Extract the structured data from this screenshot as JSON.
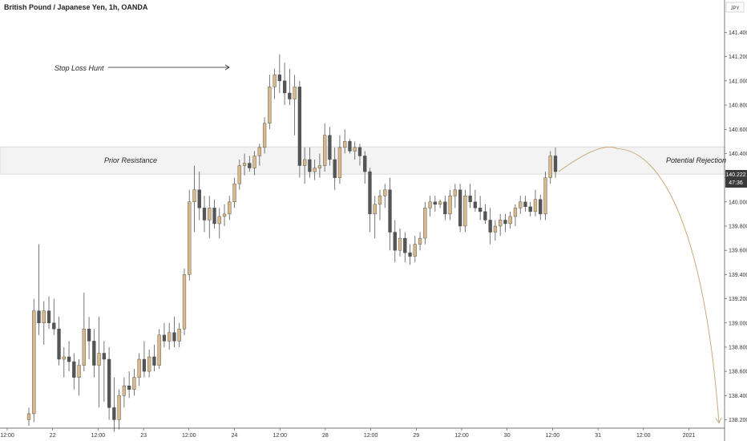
{
  "header": {
    "symbol_title": "British Pound / Japanese Yen, 1h, OANDA",
    "currency_label": "JPY"
  },
  "price_badge": {
    "price": "140.222",
    "countdown": "47:36"
  },
  "annotations": {
    "stop_loss": "Stop Loss Hunt",
    "prior_resistance": "Prior Resistance",
    "potential_rejection": "Potential Rejection"
  },
  "colors": {
    "bull": "#d9b98a",
    "bear": "#555555",
    "wick": "#555555",
    "zone": "#e5e5e5",
    "projection": "#c8ab7a",
    "badge": "#3a3a3a"
  },
  "chart_data": {
    "type": "candlestick",
    "title": "British Pound / Japanese Yen, 1h, OANDA",
    "y_axis": {
      "ylim": [
        138.12,
        141.5
      ],
      "position": "right",
      "ticks": [
        "141.400",
        "141.200",
        "141.000",
        "140.800",
        "140.600",
        "140.400",
        "140.200",
        "140.000",
        "139.800",
        "139.600",
        "139.400",
        "139.200",
        "139.000",
        "138.800",
        "138.600",
        "138.400",
        "138.200"
      ]
    },
    "x_axis": {
      "ticks": [
        "12:00",
        "22",
        "12:00",
        "23",
        "12:00",
        "24",
        "12:00",
        "28",
        "12:00",
        "29",
        "12:00",
        "30",
        "12:00",
        "31",
        "12:00",
        "2021"
      ]
    },
    "resistance_zone": {
      "low": 140.23,
      "high": 140.455,
      "label": "Prior Resistance"
    },
    "candles": [
      {
        "o": 138.2,
        "h": 138.3,
        "l": 138.15,
        "c": 138.25
      },
      {
        "o": 138.25,
        "h": 139.2,
        "l": 138.18,
        "c": 139.1
      },
      {
        "o": 139.1,
        "h": 139.65,
        "l": 138.9,
        "c": 139.0
      },
      {
        "o": 139.0,
        "h": 139.18,
        "l": 138.82,
        "c": 139.1
      },
      {
        "o": 139.1,
        "h": 139.22,
        "l": 138.95,
        "c": 139.0
      },
      {
        "o": 139.0,
        "h": 139.2,
        "l": 138.9,
        "c": 138.95
      },
      {
        "o": 138.95,
        "h": 139.05,
        "l": 138.65,
        "c": 138.7
      },
      {
        "o": 138.7,
        "h": 138.8,
        "l": 138.55,
        "c": 138.72
      },
      {
        "o": 138.72,
        "h": 138.85,
        "l": 138.6,
        "c": 138.68
      },
      {
        "o": 138.68,
        "h": 138.75,
        "l": 138.45,
        "c": 138.55
      },
      {
        "o": 138.55,
        "h": 138.7,
        "l": 138.4,
        "c": 138.65
      },
      {
        "o": 138.65,
        "h": 139.25,
        "l": 138.6,
        "c": 138.95
      },
      {
        "o": 138.95,
        "h": 139.05,
        "l": 138.7,
        "c": 138.85
      },
      {
        "o": 138.85,
        "h": 138.95,
        "l": 138.55,
        "c": 138.65
      },
      {
        "o": 138.65,
        "h": 139.05,
        "l": 138.3,
        "c": 138.75
      },
      {
        "o": 138.75,
        "h": 138.85,
        "l": 138.35,
        "c": 138.7
      },
      {
        "o": 138.7,
        "h": 138.8,
        "l": 138.2,
        "c": 138.3
      },
      {
        "o": 138.3,
        "h": 138.55,
        "l": 138.1,
        "c": 138.2
      },
      {
        "o": 138.2,
        "h": 138.45,
        "l": 138.12,
        "c": 138.4
      },
      {
        "o": 138.4,
        "h": 138.55,
        "l": 138.3,
        "c": 138.48
      },
      {
        "o": 138.48,
        "h": 138.6,
        "l": 138.38,
        "c": 138.45
      },
      {
        "o": 138.45,
        "h": 138.62,
        "l": 138.4,
        "c": 138.55
      },
      {
        "o": 138.55,
        "h": 138.75,
        "l": 138.48,
        "c": 138.7
      },
      {
        "o": 138.7,
        "h": 138.85,
        "l": 138.55,
        "c": 138.6
      },
      {
        "o": 138.6,
        "h": 138.78,
        "l": 138.55,
        "c": 138.72
      },
      {
        "o": 138.72,
        "h": 138.82,
        "l": 138.6,
        "c": 138.65
      },
      {
        "o": 138.65,
        "h": 138.95,
        "l": 138.62,
        "c": 138.9
      },
      {
        "o": 138.9,
        "h": 139.0,
        "l": 138.8,
        "c": 138.85
      },
      {
        "o": 138.85,
        "h": 139.0,
        "l": 138.78,
        "c": 138.92
      },
      {
        "o": 138.92,
        "h": 139.05,
        "l": 138.8,
        "c": 138.85
      },
      {
        "o": 138.85,
        "h": 139.0,
        "l": 138.8,
        "c": 138.95
      },
      {
        "o": 138.95,
        "h": 139.45,
        "l": 138.9,
        "c": 139.4
      },
      {
        "o": 139.4,
        "h": 140.1,
        "l": 139.35,
        "c": 140.0
      },
      {
        "o": 140.0,
        "h": 140.3,
        "l": 139.75,
        "c": 140.1
      },
      {
        "o": 140.1,
        "h": 140.25,
        "l": 139.85,
        "c": 139.95
      },
      {
        "o": 139.95,
        "h": 140.05,
        "l": 139.75,
        "c": 139.85
      },
      {
        "o": 139.85,
        "h": 140.05,
        "l": 139.7,
        "c": 139.95
      },
      {
        "o": 139.95,
        "h": 140.02,
        "l": 139.78,
        "c": 139.82
      },
      {
        "o": 139.82,
        "h": 139.95,
        "l": 139.7,
        "c": 139.88
      },
      {
        "o": 139.88,
        "h": 139.98,
        "l": 139.8,
        "c": 139.9
      },
      {
        "o": 139.9,
        "h": 140.05,
        "l": 139.85,
        "c": 140.0
      },
      {
        "o": 140.0,
        "h": 140.2,
        "l": 139.95,
        "c": 140.15
      },
      {
        "o": 140.15,
        "h": 140.35,
        "l": 140.1,
        "c": 140.3
      },
      {
        "o": 140.3,
        "h": 140.4,
        "l": 140.22,
        "c": 140.32
      },
      {
        "o": 140.32,
        "h": 140.38,
        "l": 140.25,
        "c": 140.28
      },
      {
        "o": 140.28,
        "h": 140.42,
        "l": 140.22,
        "c": 140.38
      },
      {
        "o": 140.38,
        "h": 140.48,
        "l": 140.3,
        "c": 140.45
      },
      {
        "o": 140.45,
        "h": 140.7,
        "l": 140.4,
        "c": 140.65
      },
      {
        "o": 140.65,
        "h": 141.05,
        "l": 140.6,
        "c": 140.95
      },
      {
        "o": 140.95,
        "h": 141.1,
        "l": 140.85,
        "c": 141.05
      },
      {
        "o": 141.05,
        "h": 141.22,
        "l": 140.9,
        "c": 141.0
      },
      {
        "o": 141.0,
        "h": 141.15,
        "l": 140.8,
        "c": 140.9
      },
      {
        "o": 140.9,
        "h": 141.1,
        "l": 140.8,
        "c": 140.85
      },
      {
        "o": 140.85,
        "h": 141.05,
        "l": 140.55,
        "c": 140.95
      },
      {
        "o": 140.95,
        "h": 141.0,
        "l": 140.2,
        "c": 140.3
      },
      {
        "o": 140.3,
        "h": 140.45,
        "l": 140.15,
        "c": 140.35
      },
      {
        "o": 140.35,
        "h": 140.45,
        "l": 140.2,
        "c": 140.25
      },
      {
        "o": 140.25,
        "h": 140.35,
        "l": 140.18,
        "c": 140.28
      },
      {
        "o": 140.28,
        "h": 140.4,
        "l": 140.2,
        "c": 140.3
      },
      {
        "o": 140.3,
        "h": 140.65,
        "l": 140.25,
        "c": 140.55
      },
      {
        "o": 140.55,
        "h": 140.62,
        "l": 140.3,
        "c": 140.35
      },
      {
        "o": 140.35,
        "h": 140.45,
        "l": 140.1,
        "c": 140.2
      },
      {
        "o": 140.2,
        "h": 140.55,
        "l": 140.15,
        "c": 140.45
      },
      {
        "o": 140.45,
        "h": 140.6,
        "l": 140.4,
        "c": 140.5
      },
      {
        "o": 140.5,
        "h": 140.52,
        "l": 140.4,
        "c": 140.42
      },
      {
        "o": 140.42,
        "h": 140.5,
        "l": 140.35,
        "c": 140.45
      },
      {
        "o": 140.45,
        "h": 140.48,
        "l": 140.3,
        "c": 140.38
      },
      {
        "o": 140.38,
        "h": 140.42,
        "l": 140.15,
        "c": 140.25
      },
      {
        "o": 140.25,
        "h": 140.28,
        "l": 139.75,
        "c": 139.9
      },
      {
        "o": 139.9,
        "h": 140.05,
        "l": 139.7,
        "c": 139.98
      },
      {
        "o": 139.98,
        "h": 140.1,
        "l": 139.85,
        "c": 140.05
      },
      {
        "o": 140.05,
        "h": 140.15,
        "l": 139.95,
        "c": 140.1
      },
      {
        "o": 140.1,
        "h": 140.2,
        "l": 139.6,
        "c": 139.75
      },
      {
        "o": 139.75,
        "h": 139.85,
        "l": 139.5,
        "c": 139.6
      },
      {
        "o": 139.6,
        "h": 139.78,
        "l": 139.55,
        "c": 139.7
      },
      {
        "o": 139.7,
        "h": 139.75,
        "l": 139.5,
        "c": 139.58
      },
      {
        "o": 139.58,
        "h": 139.65,
        "l": 139.48,
        "c": 139.55
      },
      {
        "o": 139.55,
        "h": 139.72,
        "l": 139.5,
        "c": 139.65
      },
      {
        "o": 139.65,
        "h": 139.75,
        "l": 139.6,
        "c": 139.7
      },
      {
        "o": 139.7,
        "h": 140.0,
        "l": 139.65,
        "c": 139.95
      },
      {
        "o": 139.95,
        "h": 140.05,
        "l": 139.88,
        "c": 140.0
      },
      {
        "o": 140.0,
        "h": 140.05,
        "l": 139.92,
        "c": 139.98
      },
      {
        "o": 139.98,
        "h": 140.02,
        "l": 139.95,
        "c": 140.0
      },
      {
        "o": 140.0,
        "h": 140.05,
        "l": 139.85,
        "c": 139.9
      },
      {
        "o": 139.9,
        "h": 140.1,
        "l": 139.85,
        "c": 140.05
      },
      {
        "o": 140.05,
        "h": 140.15,
        "l": 139.95,
        "c": 140.1
      },
      {
        "o": 140.1,
        "h": 140.15,
        "l": 139.75,
        "c": 139.8
      },
      {
        "o": 139.8,
        "h": 140.1,
        "l": 139.75,
        "c": 140.05
      },
      {
        "o": 140.05,
        "h": 140.15,
        "l": 139.95,
        "c": 140.0
      },
      {
        "o": 140.0,
        "h": 140.1,
        "l": 139.92,
        "c": 139.95
      },
      {
        "o": 139.95,
        "h": 140.05,
        "l": 139.85,
        "c": 139.92
      },
      {
        "o": 139.92,
        "h": 139.98,
        "l": 139.82,
        "c": 139.85
      },
      {
        "o": 139.85,
        "h": 139.95,
        "l": 139.65,
        "c": 139.75
      },
      {
        "o": 139.75,
        "h": 139.85,
        "l": 139.68,
        "c": 139.8
      },
      {
        "o": 139.8,
        "h": 139.9,
        "l": 139.72,
        "c": 139.85
      },
      {
        "o": 139.85,
        "h": 139.9,
        "l": 139.75,
        "c": 139.82
      },
      {
        "o": 139.82,
        "h": 139.92,
        "l": 139.78,
        "c": 139.88
      },
      {
        "o": 139.88,
        "h": 139.98,
        "l": 139.8,
        "c": 139.95
      },
      {
        "o": 139.95,
        "h": 140.05,
        "l": 139.9,
        "c": 140.0
      },
      {
        "o": 140.0,
        "h": 140.05,
        "l": 139.92,
        "c": 139.96
      },
      {
        "o": 139.96,
        "h": 140.0,
        "l": 139.88,
        "c": 139.92
      },
      {
        "o": 139.92,
        "h": 140.1,
        "l": 139.88,
        "c": 140.02
      },
      {
        "o": 140.02,
        "h": 140.06,
        "l": 139.85,
        "c": 139.9
      },
      {
        "o": 139.9,
        "h": 140.25,
        "l": 139.85,
        "c": 140.2
      },
      {
        "o": 140.2,
        "h": 140.42,
        "l": 140.15,
        "c": 140.38
      },
      {
        "o": 140.38,
        "h": 140.45,
        "l": 140.2,
        "c": 140.25
      }
    ],
    "projection": {
      "from_price": 140.25,
      "peak_price": 140.4,
      "end_price": 138.2,
      "label": "Potential Rejection"
    }
  }
}
